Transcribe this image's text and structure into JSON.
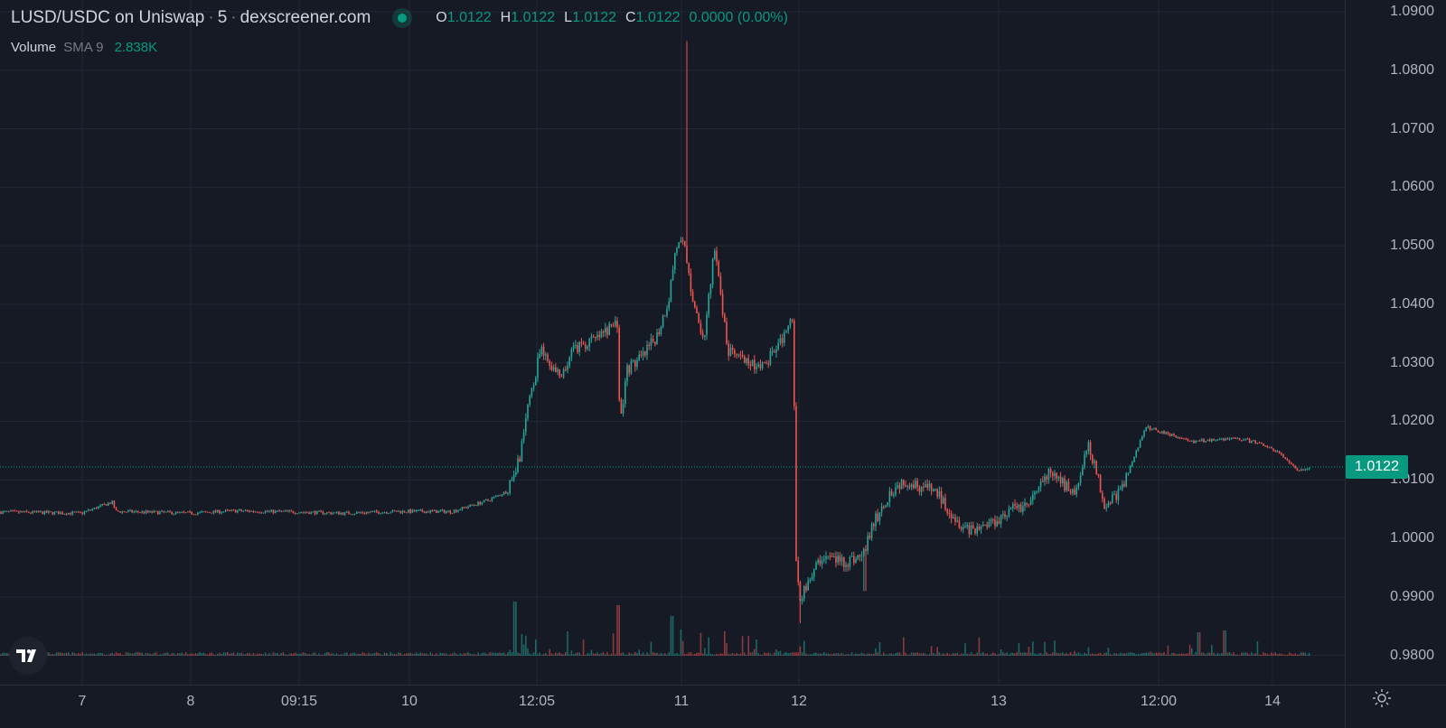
{
  "header": {
    "pair": "LUSD/USDC on Uniswap",
    "interval": "5",
    "source": "dexscreener.com",
    "ohlc": {
      "o_label": "O",
      "o_value": "1.0122",
      "h_label": "H",
      "h_value": "1.0122",
      "l_label": "L",
      "l_value": "1.0122",
      "c_label": "C",
      "c_value": "1.0122",
      "change": "0.0000 (0.00%)"
    }
  },
  "volume_legend": {
    "label": "Volume",
    "sma": "SMA 9",
    "value": "2.838K"
  },
  "price_axis": {
    "ticks": [
      "1.0900",
      "1.0800",
      "1.0700",
      "1.0600",
      "1.0500",
      "1.0400",
      "1.0300",
      "1.0200",
      "1.0100",
      "1.0000",
      "0.9900",
      "0.9800"
    ],
    "current": "1.0122"
  },
  "time_axis": {
    "ticks": [
      "7",
      "8",
      "09:15",
      "10",
      "12:05",
      "11",
      "12",
      "13",
      "12:00",
      "14"
    ]
  },
  "colors": {
    "up": "#089981",
    "down": "#f23645",
    "up_candle": "#26a69a",
    "down_candle": "#ef5350",
    "background": "#161a25",
    "grid": "#232734"
  },
  "icons": {
    "settings": "gear-icon",
    "logo": "tradingview-logo-icon"
  },
  "chart_data": {
    "type": "candlestick",
    "ylim": [
      0.975,
      1.092
    ],
    "xlim": [
      0,
      1488
    ],
    "anchors": [
      {
        "x": 0,
        "y": 1.0045
      },
      {
        "x": 90,
        "y": 1.0043
      },
      {
        "x": 124,
        "y": 1.0062
      },
      {
        "x": 128,
        "y": 1.0046
      },
      {
        "x": 210,
        "y": 1.0043
      },
      {
        "x": 260,
        "y": 1.0047
      },
      {
        "x": 330,
        "y": 1.0045
      },
      {
        "x": 380,
        "y": 1.0043
      },
      {
        "x": 440,
        "y": 1.0046
      },
      {
        "x": 500,
        "y": 1.0046
      },
      {
        "x": 540,
        "y": 1.0065
      },
      {
        "x": 560,
        "y": 1.008
      },
      {
        "x": 575,
        "y": 1.014
      },
      {
        "x": 585,
        "y": 1.023
      },
      {
        "x": 598,
        "y": 1.032
      },
      {
        "x": 612,
        "y": 1.029
      },
      {
        "x": 622,
        "y": 1.027
      },
      {
        "x": 632,
        "y": 1.032
      },
      {
        "x": 660,
        "y": 1.034
      },
      {
        "x": 683,
        "y": 1.037
      },
      {
        "x": 686,
        "y": 1.019
      },
      {
        "x": 694,
        "y": 1.029
      },
      {
        "x": 712,
        "y": 1.031
      },
      {
        "x": 728,
        "y": 1.035
      },
      {
        "x": 740,
        "y": 1.041
      },
      {
        "x": 748,
        "y": 1.05
      },
      {
        "x": 757,
        "y": 1.05
      },
      {
        "x": 763,
        "y": 1.044
      },
      {
        "x": 772,
        "y": 1.037
      },
      {
        "x": 780,
        "y": 1.034
      },
      {
        "x": 790,
        "y": 1.05
      },
      {
        "x": 797,
        "y": 1.042
      },
      {
        "x": 805,
        "y": 1.032
      },
      {
        "x": 825,
        "y": 1.03
      },
      {
        "x": 845,
        "y": 1.029
      },
      {
        "x": 865,
        "y": 1.034
      },
      {
        "x": 878,
        "y": 1.038
      },
      {
        "x": 880,
        "y": 0.998
      },
      {
        "x": 885,
        "y": 0.99
      },
      {
        "x": 895,
        "y": 0.993
      },
      {
        "x": 910,
        "y": 0.997
      },
      {
        "x": 935,
        "y": 0.996
      },
      {
        "x": 955,
        "y": 0.997
      },
      {
        "x": 965,
        "y": 1.002
      },
      {
        "x": 985,
        "y": 1.008
      },
      {
        "x": 1000,
        "y": 1.01
      },
      {
        "x": 1035,
        "y": 1.008
      },
      {
        "x": 1060,
        "y": 1.003
      },
      {
        "x": 1075,
        "y": 1.0015
      },
      {
        "x": 1100,
        "y": 1.003
      },
      {
        "x": 1120,
        "y": 1.005
      },
      {
        "x": 1140,
        "y": 1.006
      },
      {
        "x": 1160,
        "y": 1.011
      },
      {
        "x": 1190,
        "y": 1.008
      },
      {
        "x": 1205,
        "y": 1.016
      },
      {
        "x": 1222,
        "y": 1.006
      },
      {
        "x": 1240,
        "y": 1.008
      },
      {
        "x": 1255,
        "y": 1.014
      },
      {
        "x": 1268,
        "y": 1.019
      },
      {
        "x": 1290,
        "y": 1.018
      },
      {
        "x": 1320,
        "y": 1.0165
      },
      {
        "x": 1350,
        "y": 1.017
      },
      {
        "x": 1372,
        "y": 1.017
      },
      {
        "x": 1400,
        "y": 1.016
      },
      {
        "x": 1420,
        "y": 1.014
      },
      {
        "x": 1435,
        "y": 1.0115
      },
      {
        "x": 1450,
        "y": 1.0122
      }
    ],
    "spikes": [
      {
        "x": 760,
        "y": 1.085
      },
      {
        "x": 886,
        "y": 0.9855
      },
      {
        "x": 957,
        "y": 0.991
      }
    ],
    "current_price": 1.0122
  }
}
